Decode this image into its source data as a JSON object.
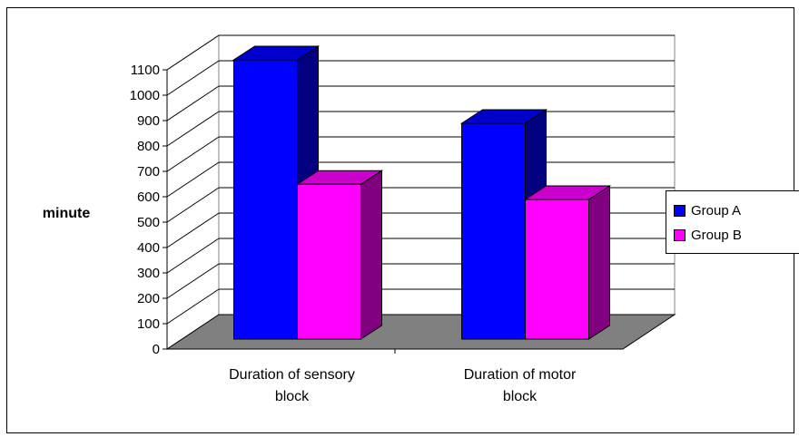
{
  "chart_data": {
    "type": "bar",
    "three_d": true,
    "categories": [
      "Duration of sensory\nblock",
      "Duration of motor\nblock"
    ],
    "series": [
      {
        "name": "Group A",
        "values": [
          1100,
          850
        ],
        "color": "#0000FF",
        "side_color": "#000080",
        "top_color": "#0000CC"
      },
      {
        "name": "Group B",
        "values": [
          610,
          550
        ],
        "color": "#FF00FF",
        "side_color": "#800080",
        "top_color": "#CC00CC"
      }
    ],
    "ylabel": "minute",
    "ylim": [
      0,
      1100
    ],
    "yticks": [
      0,
      100,
      200,
      300,
      400,
      500,
      600,
      700,
      800,
      900,
      1000,
      1100
    ],
    "grid": true,
    "legend_position": "right",
    "wall_color": "#FFFFFF",
    "floor_color": "#808080"
  }
}
